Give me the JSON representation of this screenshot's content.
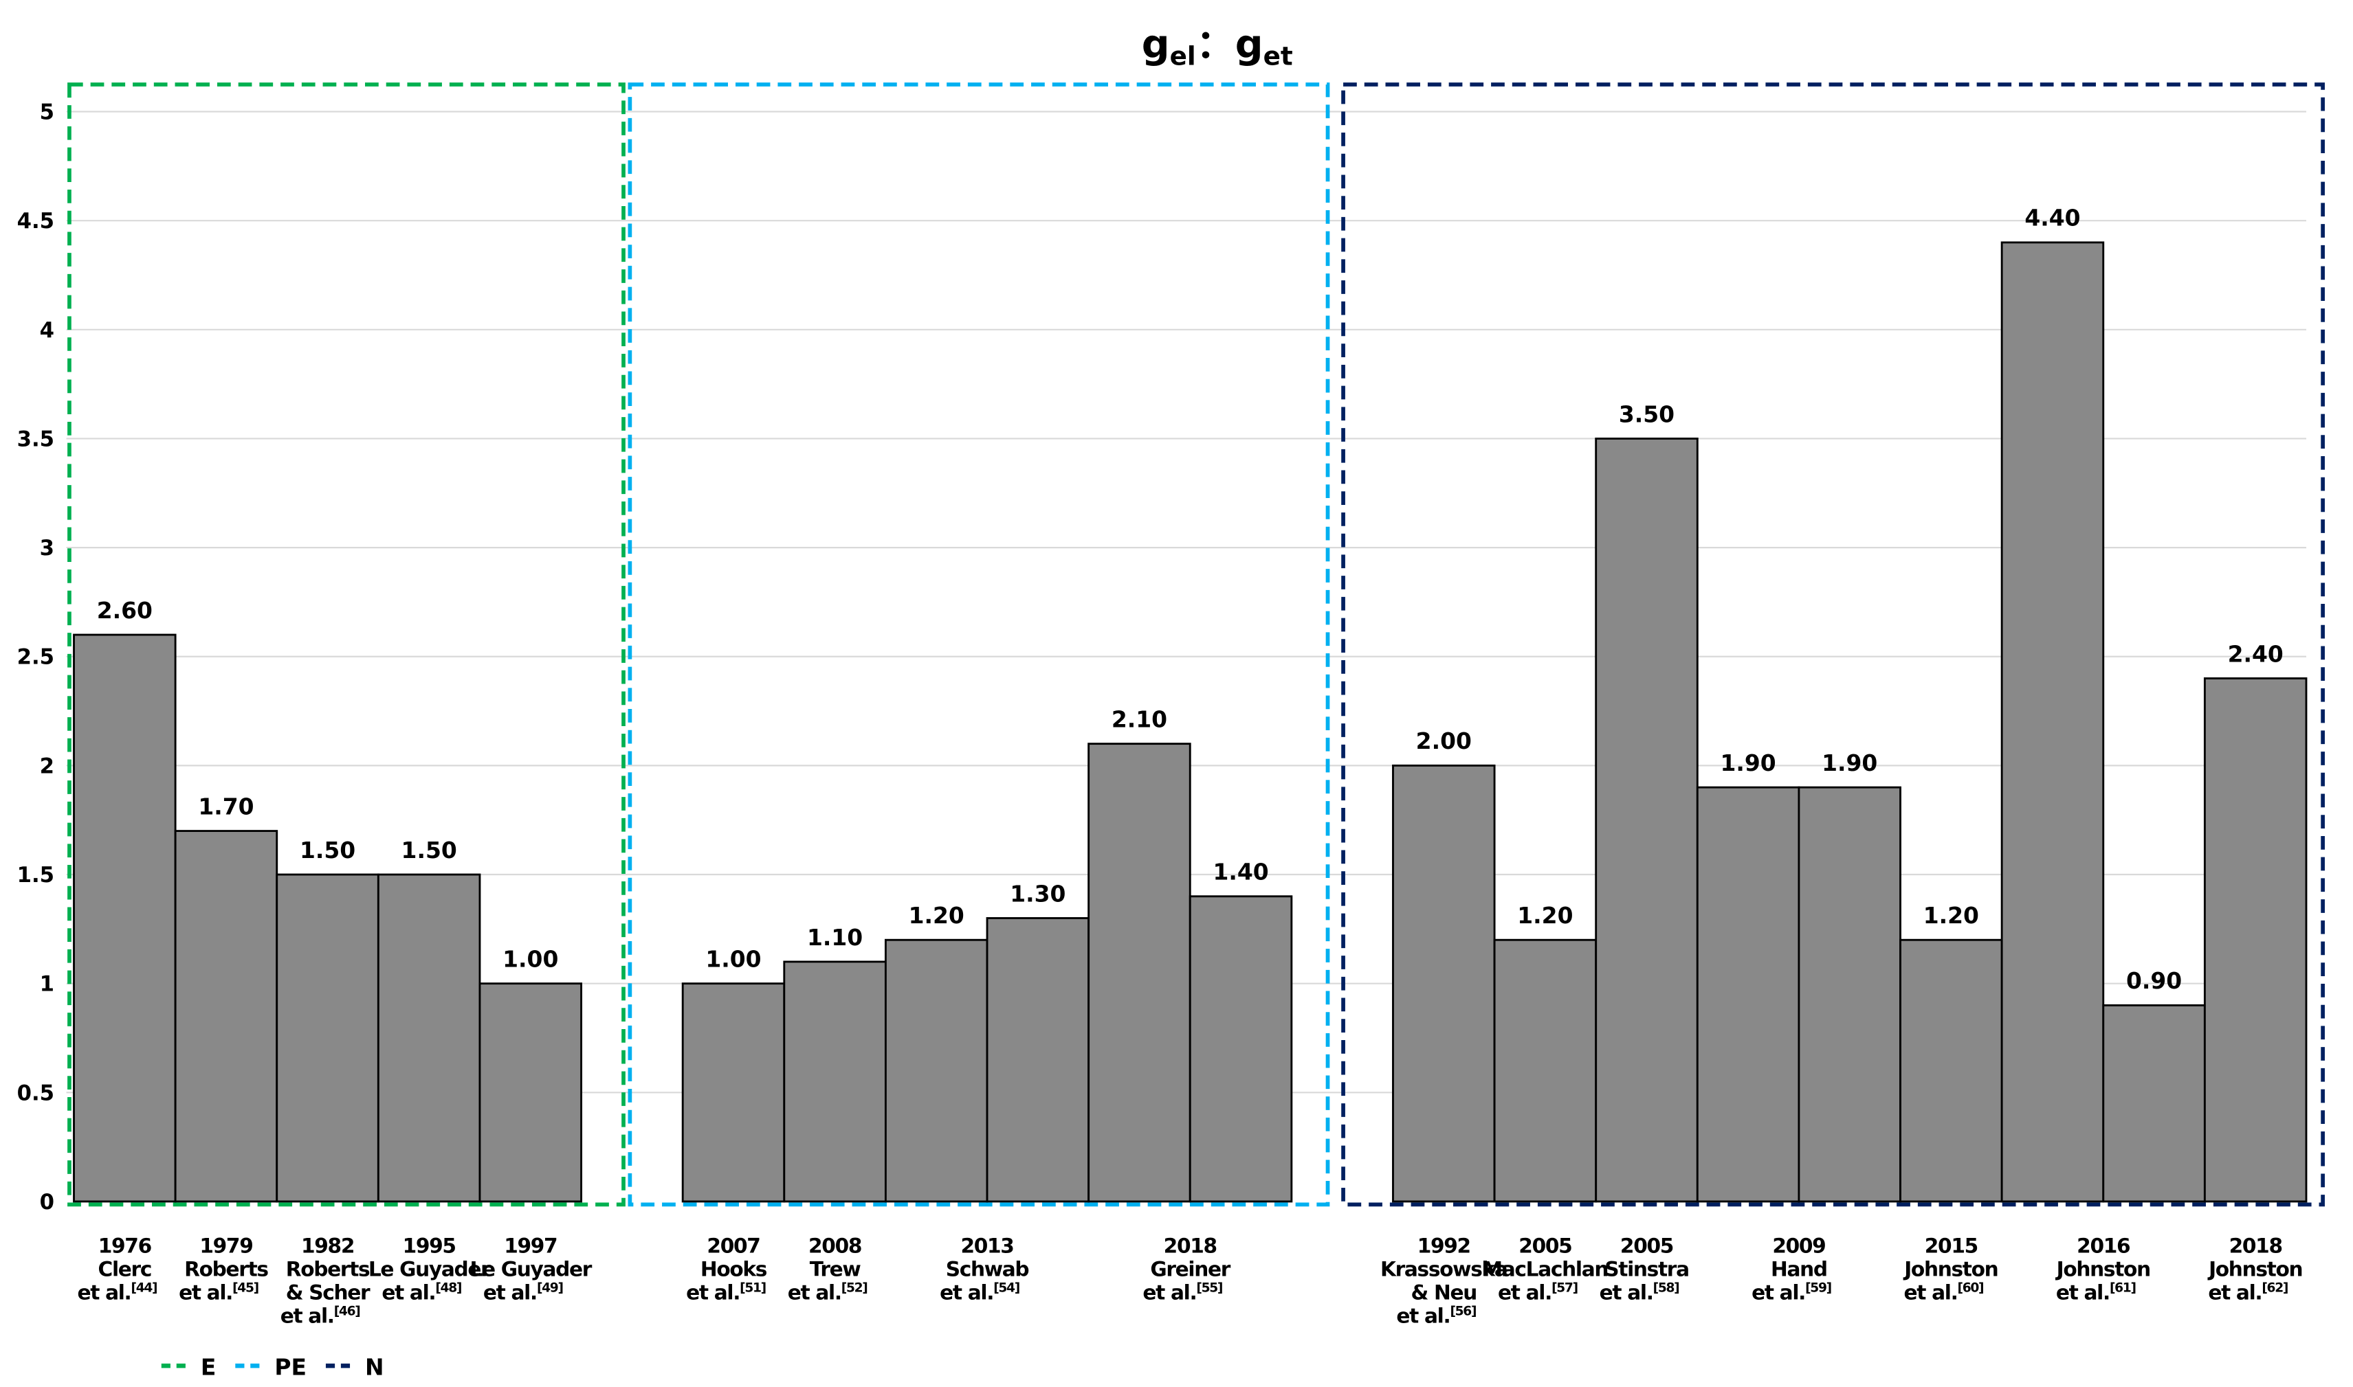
{
  "chart_data": {
    "type": "bar",
    "title": {
      "main_1": "g",
      "sub_1": "el",
      "sep": "：",
      "main_2": "g",
      "sub_2": "et"
    },
    "xlabel": "",
    "ylabel": "",
    "ylim": [
      0,
      5
    ],
    "yticks": [
      "0",
      "0.5",
      "1",
      "1.5",
      "2",
      "2.5",
      "3",
      "3.5",
      "4",
      "4.5",
      "5"
    ],
    "grid": true,
    "groups": [
      {
        "name": "E",
        "color": "#00b050"
      },
      {
        "name": "PE",
        "color": "#00b0f0"
      },
      {
        "name": "N",
        "color": "#002060"
      }
    ],
    "bar_color": "#898989",
    "bars": [
      {
        "group": "E",
        "value": 2.6,
        "label": "2.60"
      },
      {
        "group": "E",
        "value": 1.7,
        "label": "1.70"
      },
      {
        "group": "E",
        "value": 1.5,
        "label": "1.50"
      },
      {
        "group": "E",
        "value": 1.5,
        "label": "1.50"
      },
      {
        "group": "E",
        "value": 1.0,
        "label": "1.00"
      },
      null,
      {
        "group": "PE",
        "value": 1.0,
        "label": "1.00"
      },
      {
        "group": "PE",
        "value": 1.1,
        "label": "1.10"
      },
      {
        "group": "PE",
        "value": 1.2,
        "label": "1.20"
      },
      {
        "group": "PE",
        "value": 1.3,
        "label": "1.30"
      },
      {
        "group": "PE",
        "value": 2.1,
        "label": "2.10"
      },
      {
        "group": "PE",
        "value": 1.4,
        "label": "1.40"
      },
      null,
      {
        "group": "N",
        "value": 2.0,
        "label": "2.00"
      },
      {
        "group": "N",
        "value": 1.2,
        "label": "1.20"
      },
      {
        "group": "N",
        "value": 3.5,
        "label": "3.50"
      },
      {
        "group": "N",
        "value": 1.9,
        "label": "1.90"
      },
      {
        "group": "N",
        "value": 1.9,
        "label": "1.90"
      },
      {
        "group": "N",
        "value": 1.2,
        "label": "1.20"
      },
      {
        "group": "N",
        "value": 4.4,
        "label": "4.40"
      },
      {
        "group": "N",
        "value": 0.9,
        "label": "0.90"
      },
      {
        "group": "N",
        "value": 2.4,
        "label": "2.40"
      }
    ],
    "categories": [
      {
        "bar_index": 0,
        "span": 1,
        "lines": [
          "1976",
          "Clerc"
        ],
        "last": "et al.",
        "ref": "[44]"
      },
      {
        "bar_index": 1,
        "span": 1,
        "lines": [
          "1979",
          "Roberts"
        ],
        "last": "et al.",
        "ref": "[45]"
      },
      {
        "bar_index": 2,
        "span": 1,
        "lines": [
          "1982",
          "Roberts",
          "& Scher"
        ],
        "last": "et al.",
        "ref": "[46]"
      },
      {
        "bar_index": 3,
        "span": 1,
        "lines": [
          "1995",
          "Le Guyader"
        ],
        "last": "et al.",
        "ref": "[48]"
      },
      {
        "bar_index": 4,
        "span": 1,
        "lines": [
          "1997",
          "Le Guyader"
        ],
        "last": "et al.",
        "ref": "[49]"
      },
      {
        "bar_index": 6,
        "span": 1,
        "lines": [
          "2007",
          "Hooks"
        ],
        "last": "et al.",
        "ref": "[51]"
      },
      {
        "bar_index": 7,
        "span": 1,
        "lines": [
          "2008",
          "Trew"
        ],
        "last": "et al.",
        "ref": "[52]"
      },
      {
        "bar_index": 8,
        "span": 2,
        "lines": [
          "2013",
          "Schwab"
        ],
        "last": "et al.",
        "ref": "[54]"
      },
      {
        "bar_index": 10,
        "span": 2,
        "lines": [
          "2018",
          "Greiner"
        ],
        "last": "et al.",
        "ref": "[55]"
      },
      {
        "bar_index": 13,
        "span": 1,
        "lines": [
          "1992",
          "Krassowska",
          "& Neu"
        ],
        "last": "et al.",
        "ref": "[56]"
      },
      {
        "bar_index": 14,
        "span": 1,
        "lines": [
          "2005",
          "MacLachlan"
        ],
        "last": "et al.",
        "ref": "[57]"
      },
      {
        "bar_index": 15,
        "span": 1,
        "lines": [
          "2005",
          "Stinstra"
        ],
        "last": "et al.",
        "ref": "[58]"
      },
      {
        "bar_index": 16,
        "span": 2,
        "lines": [
          "2009",
          "Hand"
        ],
        "last": "et al.",
        "ref": "[59]"
      },
      {
        "bar_index": 18,
        "span": 1,
        "lines": [
          "2015",
          "Johnston"
        ],
        "last": "et al.",
        "ref": "[60]"
      },
      {
        "bar_index": 19,
        "span": 2,
        "lines": [
          "2016",
          "Johnston"
        ],
        "last": "et al.",
        "ref": "[61]"
      },
      {
        "bar_index": 21,
        "span": 1,
        "lines": [
          "2018",
          "Johnston"
        ],
        "last": "et al.",
        "ref": "[62]"
      }
    ],
    "legend": {
      "placement": "bottom-left",
      "entries": [
        "E",
        "PE",
        "N"
      ]
    }
  }
}
